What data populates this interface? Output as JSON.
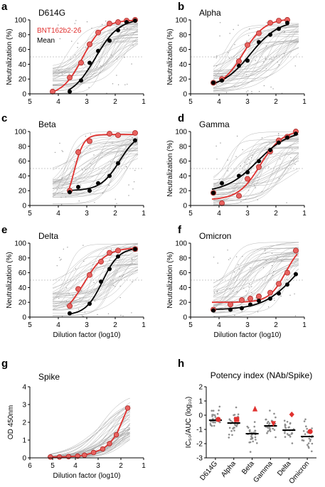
{
  "colors": {
    "red": "#e0312f",
    "redfill": "#e8625f",
    "grey": "#a9a9a9",
    "black": "#000000"
  },
  "legend": {
    "bnt": "BNT162b2-26",
    "mean": "Mean"
  },
  "neut_panels_axes": {
    "xlabel": "Dilution factor (log10)",
    "ylabel": "Neutralization (%)",
    "xlim": [
      5,
      1
    ],
    "ylim": [
      0,
      100
    ],
    "xticks": [
      5,
      4,
      3,
      2,
      1
    ],
    "yticks": [
      0,
      20,
      40,
      60,
      80,
      100
    ]
  },
  "chart_data": [
    {
      "panel": "a",
      "type": "line",
      "title": "D614G",
      "xlabel": "",
      "ylabel": "Neutralization (%)",
      "series": [
        {
          "name": "BNT162b2-26",
          "x": [
            4.2,
            3.6,
            3.2,
            2.9,
            2.6,
            2.2,
            1.9,
            1.6,
            1.3
          ],
          "y": [
            3,
            22,
            42,
            67,
            83,
            95,
            97,
            99,
            100
          ]
        },
        {
          "name": "Mean",
          "x": [
            3.6,
            3.2,
            2.9,
            2.6,
            2.2,
            1.9,
            1.6,
            1.3
          ],
          "y": [
            3,
            18,
            42,
            58,
            72,
            86,
            97,
            99
          ]
        }
      ]
    },
    {
      "panel": "b",
      "type": "line",
      "title": "Alpha",
      "xlabel": "",
      "ylabel": "Neutralization (%)",
      "series": [
        {
          "name": "BNT162b2-26",
          "x": [
            4.2,
            3.9,
            3.3,
            3.0,
            2.6,
            2.2,
            1.9,
            1.6
          ],
          "y": [
            15,
            20,
            44,
            66,
            82,
            96,
            99,
            100
          ]
        },
        {
          "name": "Mean",
          "x": [
            4.2,
            3.9,
            3.3,
            3.0,
            2.6,
            2.2,
            1.9,
            1.6
          ],
          "y": [
            15,
            18,
            38,
            45,
            70,
            80,
            88,
            96
          ]
        }
      ]
    },
    {
      "panel": "c",
      "type": "line",
      "title": "Beta",
      "xlabel": "",
      "ylabel": "",
      "series": [
        {
          "name": "BNT162b2-26",
          "x": [
            3.6,
            3.3,
            2.9,
            2.2,
            1.9,
            1.3
          ],
          "y": [
            20,
            72,
            87,
            97,
            95,
            98
          ]
        },
        {
          "name": "Mean",
          "x": [
            3.6,
            3.3,
            2.9,
            2.6,
            2.2,
            1.9,
            1.3
          ],
          "y": [
            18,
            25,
            20,
            30,
            40,
            57,
            88
          ]
        }
      ]
    },
    {
      "panel": "d",
      "type": "line",
      "title": "Gamma",
      "xlabel": "",
      "ylabel": "Neutralization (%)",
      "series": [
        {
          "name": "BNT162b2-26",
          "x": [
            4.2,
            3.9,
            3.3,
            3.0,
            2.6,
            2.2,
            1.9,
            1.6,
            1.3
          ],
          "y": [
            17,
            3,
            13,
            36,
            52,
            73,
            88,
            93,
            100
          ]
        },
        {
          "name": "Mean",
          "x": [
            4.2,
            3.9,
            3.3,
            3.0,
            2.6,
            2.2,
            1.9,
            1.6,
            1.3
          ],
          "y": [
            17,
            30,
            40,
            45,
            60,
            75,
            85,
            92,
            97
          ]
        }
      ]
    },
    {
      "panel": "e",
      "type": "line",
      "title": "Delta",
      "xlabel": "",
      "ylabel": "Neutralization (%)",
      "series": [
        {
          "name": "BNT162b2-26",
          "x": [
            3.6,
            3.3,
            2.9,
            2.5,
            2.2,
            1.9,
            1.3
          ],
          "y": [
            15,
            38,
            57,
            75,
            87,
            90,
            92
          ]
        },
        {
          "name": "Mean",
          "x": [
            3.6,
            2.9,
            2.5,
            2.2,
            1.9,
            1.3
          ],
          "y": [
            5,
            18,
            48,
            65,
            82,
            92
          ]
        }
      ]
    },
    {
      "panel": "f",
      "type": "line",
      "title": "Omicron",
      "xlabel": "",
      "ylabel": "Neutralization (%)",
      "series": [
        {
          "name": "BNT162b2-26",
          "x": [
            4.2,
            3.6,
            3.2,
            2.9,
            2.6,
            2.2,
            1.9,
            1.6,
            1.3
          ],
          "y": [
            10,
            17,
            23,
            25,
            28,
            33,
            45,
            60,
            90
          ]
        },
        {
          "name": "Mean",
          "x": [
            4.2,
            3.6,
            3.2,
            2.9,
            2.6,
            2.2,
            1.9,
            1.6,
            1.3
          ],
          "y": [
            9,
            10,
            12,
            17,
            22,
            25,
            32,
            44,
            58
          ]
        }
      ]
    },
    {
      "panel": "g",
      "type": "line",
      "title": "Spike",
      "xlabel": "Dilution factor (log10)",
      "ylabel": "OD 450nm",
      "xlim": [
        6,
        1
      ],
      "ylim": [
        0,
        4
      ],
      "xticks": [
        6,
        5,
        4,
        3,
        2,
        1
      ],
      "yticks": [
        0,
        1,
        2,
        3,
        4
      ],
      "series": [
        {
          "name": "BNT162b2-26",
          "x": [
            5.1,
            4.7,
            4.3,
            3.9,
            3.6,
            3.2,
            2.8,
            2.5,
            2.2,
            1.7
          ],
          "y": [
            0.05,
            0.05,
            0.07,
            0.1,
            0.15,
            0.3,
            0.5,
            0.8,
            1.3,
            2.8
          ]
        }
      ]
    },
    {
      "panel": "h",
      "type": "scatter",
      "title": "Potency index (NAb/Spike)",
      "xlabel": "",
      "ylabel": "IC₅₀/AUC (log₁₀)",
      "ylim": [
        -3,
        2
      ],
      "yticks": [
        -3,
        -2,
        -1,
        0,
        1,
        2
      ],
      "categories": [
        "D614G",
        "Alpha",
        "Beta",
        "Gamma",
        "Delta",
        "Omicron"
      ],
      "means": [
        -0.35,
        -0.55,
        -1.3,
        -0.75,
        -1.05,
        -1.5
      ],
      "bnt_values": [
        -0.3,
        -0.3,
        0.45,
        -0.6,
        0.05,
        -1.15
      ],
      "bnt_markers": [
        "circle",
        "square",
        "triangle-up",
        "triangle-down",
        "diamond",
        "circle"
      ]
    }
  ]
}
